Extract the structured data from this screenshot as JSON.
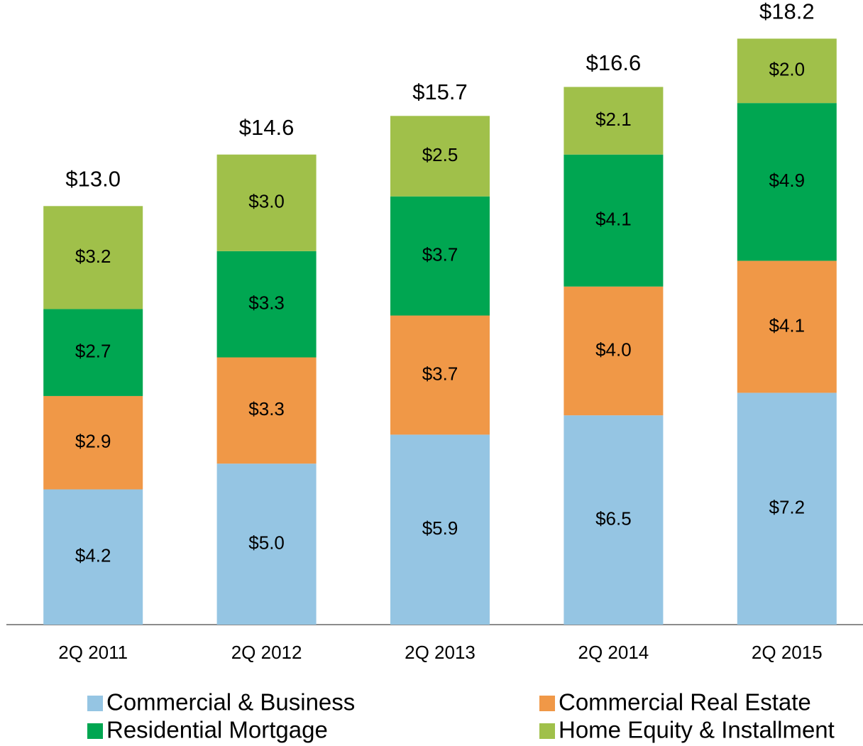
{
  "chart_data": {
    "type": "stacked_bar",
    "categories": [
      "2Q 2011",
      "2Q 2012",
      "2Q 2013",
      "2Q 2014",
      "2Q 2015"
    ],
    "series": [
      {
        "name": "Commercial & Business",
        "color": "#95c5e3",
        "values": [
          4.2,
          5.0,
          5.9,
          6.5,
          7.2
        ],
        "value_labels": [
          "$4.2",
          "$5.0",
          "$5.9",
          "$6.5",
          "$7.2"
        ]
      },
      {
        "name": "Commercial Real Estate",
        "color": "#f09847",
        "values": [
          2.9,
          3.3,
          3.7,
          4.0,
          4.1
        ],
        "value_labels": [
          "$2.9",
          "$3.3",
          "$3.7",
          "$4.0",
          "$4.1"
        ]
      },
      {
        "name": "Residential Mortgage",
        "color": "#00a651",
        "values": [
          2.7,
          3.3,
          3.7,
          4.1,
          4.9
        ],
        "value_labels": [
          "$2.7",
          "$3.3",
          "$3.7",
          "$4.1",
          "$4.9"
        ]
      },
      {
        "name": "Home Equity & Installment",
        "color": "#a0c04a",
        "values": [
          3.2,
          3.0,
          2.5,
          2.1,
          2.0
        ],
        "value_labels": [
          "$3.2",
          "$3.0",
          "$2.5",
          "$2.1",
          "$2.0"
        ]
      }
    ],
    "totals": [
      13.0,
      14.6,
      15.7,
      16.6,
      18.2
    ],
    "total_labels": [
      "$13.0",
      "$14.6",
      "$15.7",
      "$16.6",
      "$18.2"
    ],
    "ylim": [
      0,
      19.4
    ],
    "legend": "bottom"
  }
}
